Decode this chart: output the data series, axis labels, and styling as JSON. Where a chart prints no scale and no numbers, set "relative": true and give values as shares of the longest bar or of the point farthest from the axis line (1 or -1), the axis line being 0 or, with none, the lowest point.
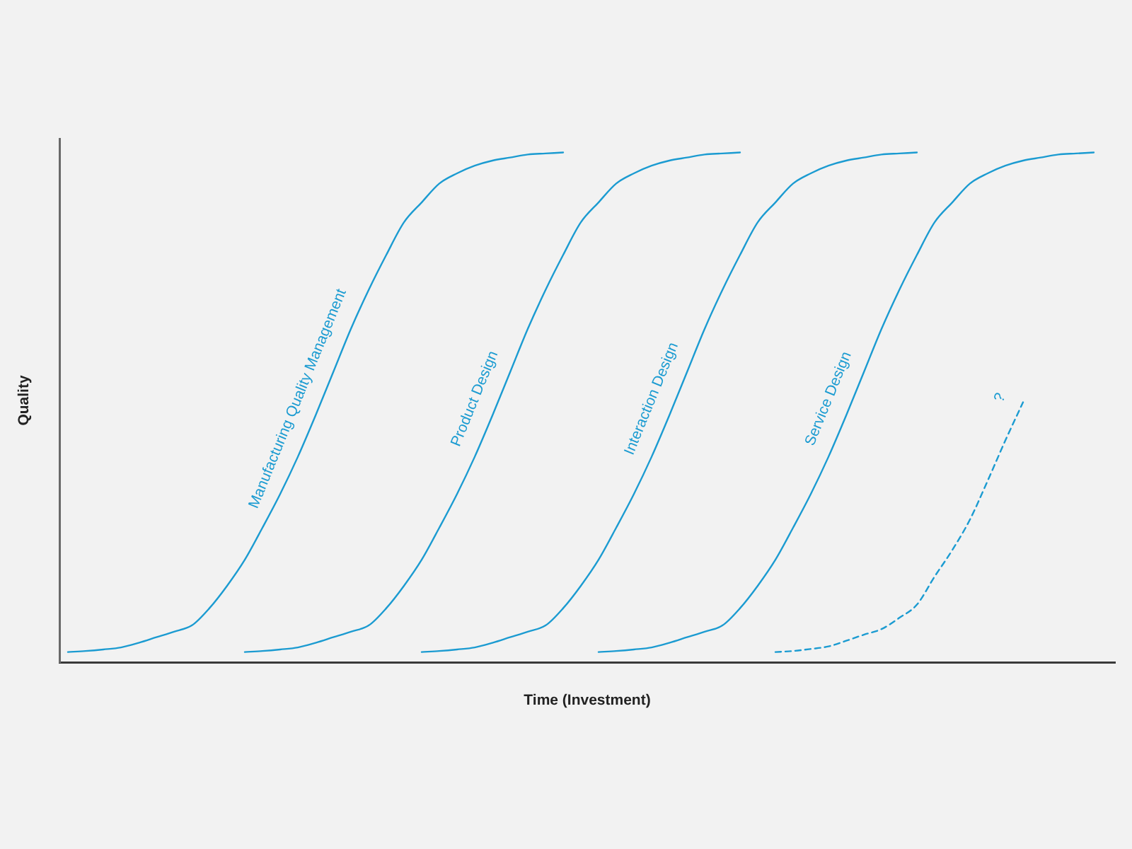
{
  "chart_data": {
    "type": "line",
    "relative": true,
    "xlabel": "Time (Investment)",
    "ylabel": "Quality",
    "legend": false,
    "grid": false,
    "marker": "none",
    "line_style": "solid",
    "categories": [
      null,
      null,
      null,
      null,
      null,
      null,
      null,
      null,
      null,
      null,
      null,
      null,
      null,
      null,
      null,
      null,
      null,
      null,
      null,
      null,
      null,
      null,
      null,
      null,
      null,
      null,
      null,
      null,
      null,
      null,
      null,
      null,
      null,
      null,
      null,
      null,
      null,
      null,
      null,
      null,
      null,
      null,
      null,
      null,
      null,
      null,
      null,
      null,
      null,
      null,
      null,
      null,
      null,
      null,
      null,
      null,
      null,
      null,
      null
    ],
    "series": [
      {
        "name": "Manufacturing Quality Management",
        "color": "#1b9bd1",
        "values": [
          0.02,
          0.022,
          0.025,
          0.029,
          0.038,
          0.049,
          0.06,
          0.072,
          0.106,
          0.15,
          0.201,
          0.264,
          0.33,
          0.403,
          0.484,
          0.569,
          0.654,
          0.73,
          0.799,
          0.863,
          0.902,
          0.939,
          0.959,
          0.974,
          0.984,
          0.99,
          0.996,
          0.998,
          1,
          null,
          null,
          null,
          null,
          null,
          null,
          null,
          null,
          null,
          null,
          null,
          null,
          null,
          null,
          null,
          null,
          null,
          null,
          null,
          null,
          null,
          null,
          null,
          null,
          null,
          null,
          null,
          null,
          null,
          null
        ]
      },
      {
        "name": "Product Design",
        "color": "#1b9bd1",
        "values": [
          null,
          null,
          null,
          null,
          null,
          null,
          null,
          null,
          null,
          null,
          0.02,
          0.022,
          0.025,
          0.029,
          0.038,
          0.049,
          0.06,
          0.072,
          0.106,
          0.15,
          0.201,
          0.264,
          0.33,
          0.403,
          0.484,
          0.569,
          0.654,
          0.73,
          0.799,
          0.863,
          0.902,
          0.939,
          0.959,
          0.974,
          0.984,
          0.99,
          0.996,
          0.998,
          1,
          null,
          null,
          null,
          null,
          null,
          null,
          null,
          null,
          null,
          null,
          null,
          null,
          null,
          null,
          null,
          null,
          null,
          null,
          null,
          null
        ]
      },
      {
        "name": "Interaction Design",
        "color": "#1b9bd1",
        "values": [
          null,
          null,
          null,
          null,
          null,
          null,
          null,
          null,
          null,
          null,
          null,
          null,
          null,
          null,
          null,
          null,
          null,
          null,
          null,
          null,
          0.02,
          0.022,
          0.025,
          0.029,
          0.038,
          0.049,
          0.06,
          0.072,
          0.106,
          0.15,
          0.201,
          0.264,
          0.33,
          0.403,
          0.484,
          0.569,
          0.654,
          0.73,
          0.799,
          0.863,
          0.902,
          0.939,
          0.959,
          0.974,
          0.984,
          0.99,
          0.996,
          0.998,
          1,
          null,
          null,
          null,
          null,
          null,
          null,
          null,
          null,
          null,
          null
        ]
      },
      {
        "name": "Service Design",
        "color": "#1b9bd1",
        "values": [
          null,
          null,
          null,
          null,
          null,
          null,
          null,
          null,
          null,
          null,
          null,
          null,
          null,
          null,
          null,
          null,
          null,
          null,
          null,
          null,
          null,
          null,
          null,
          null,
          null,
          null,
          null,
          null,
          null,
          null,
          0.02,
          0.022,
          0.025,
          0.029,
          0.038,
          0.049,
          0.06,
          0.072,
          0.106,
          0.15,
          0.201,
          0.264,
          0.33,
          0.403,
          0.484,
          0.569,
          0.654,
          0.73,
          0.799,
          0.863,
          0.902,
          0.939,
          0.959,
          0.974,
          0.984,
          0.99,
          0.996,
          0.998,
          1
        ]
      },
      {
        "name": "?",
        "color": "#1b9bd1",
        "line_style": "dashed",
        "values": [
          null,
          null,
          null,
          null,
          null,
          null,
          null,
          null,
          null,
          null,
          null,
          null,
          null,
          null,
          null,
          null,
          null,
          null,
          null,
          null,
          null,
          null,
          null,
          null,
          null,
          null,
          null,
          null,
          null,
          null,
          null,
          null,
          null,
          null,
          null,
          null,
          null,
          null,
          null,
          null,
          0.02,
          0.022,
          0.026,
          0.031,
          0.042,
          0.054,
          0.065,
          0.087,
          0.113,
          0.168,
          0.22,
          0.28,
          0.356,
          0.435,
          0.51,
          null,
          null,
          null,
          null
        ]
      }
    ]
  }
}
